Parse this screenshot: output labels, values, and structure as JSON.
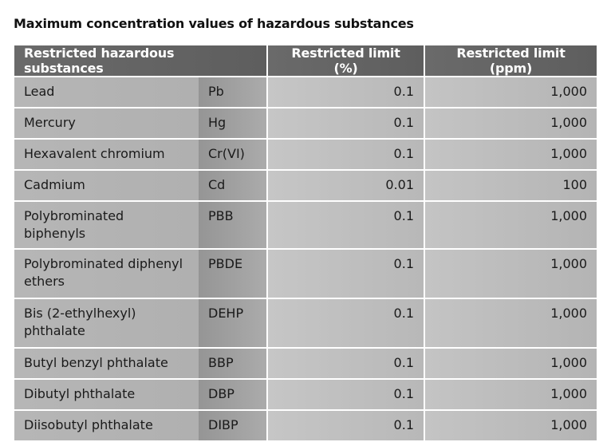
{
  "title": "Maximum concentration values of hazardous substances",
  "table": {
    "headers": [
      "Restricted hazardous substances",
      "Restricted limit (%)",
      "Restricted limit (ppm)"
    ],
    "rows": [
      {
        "name": "Lead",
        "symbol": "Pb",
        "pct": "0.1",
        "ppm": "1,000"
      },
      {
        "name": "Mercury",
        "symbol": "Hg",
        "pct": "0.1",
        "ppm": "1,000"
      },
      {
        "name": "Hexavalent chromium",
        "symbol": "Cr(VI)",
        "pct": "0.1",
        "ppm": "1,000"
      },
      {
        "name": "Cadmium",
        "symbol": "Cd",
        "pct": "0.01",
        "ppm": "100"
      },
      {
        "name": "Polybrominated biphenyls",
        "symbol": "PBB",
        "pct": "0.1",
        "ppm": "1,000"
      },
      {
        "name": "Polybrominated diphenyl ethers",
        "symbol": "PBDE",
        "pct": "0.1",
        "ppm": "1,000"
      },
      {
        "name": "Bis (2-ethylhexyl) phthalate",
        "symbol": "DEHP",
        "pct": "0.1",
        "ppm": "1,000"
      },
      {
        "name": "Butyl benzyl phthalate",
        "symbol": "BBP",
        "pct": "0.1",
        "ppm": "1,000"
      },
      {
        "name": "Dibutyl phthalate",
        "symbol": "DBP",
        "pct": "0.1",
        "ppm": "1,000"
      },
      {
        "name": "Diisobutyl phthalate",
        "symbol": "DIBP",
        "pct": "0.1",
        "ppm": "1,000"
      }
    ]
  }
}
